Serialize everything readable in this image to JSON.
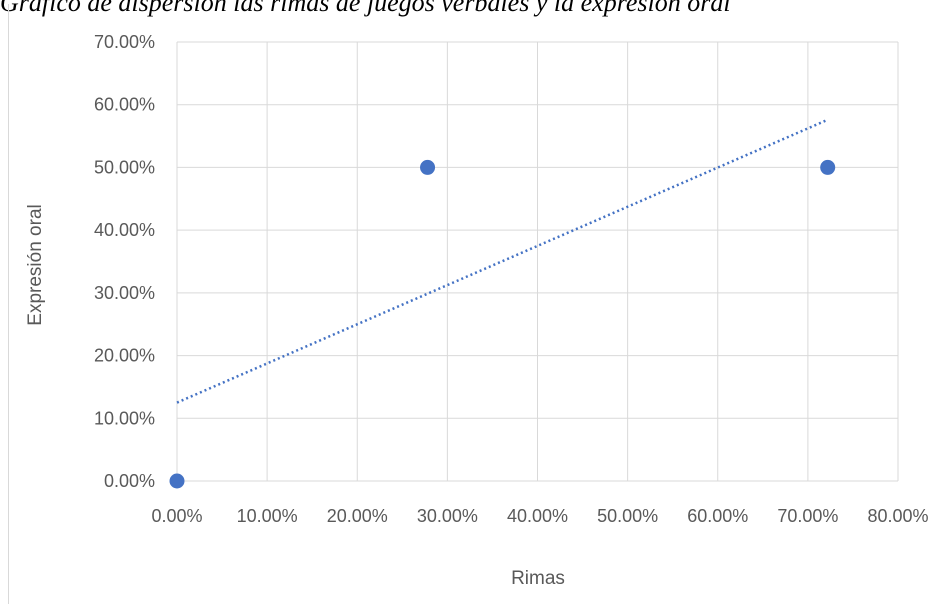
{
  "title": "Gráfico de dispersión las rimas de juegos verbales y la expresión oral",
  "colors": {
    "series": "#4472C4",
    "grid": "#d9d9d9",
    "text": "#595959"
  },
  "chart_data": {
    "type": "scatter",
    "xlabel": "Rimas",
    "ylabel": "Expresión oral",
    "xlim": [
      0,
      0.8
    ],
    "ylim": [
      0,
      0.7
    ],
    "x_ticks": [
      "0.00%",
      "10.00%",
      "20.00%",
      "30.00%",
      "40.00%",
      "50.00%",
      "60.00%",
      "70.00%",
      "80.00%"
    ],
    "y_ticks": [
      "0.00%",
      "10.00%",
      "20.00%",
      "30.00%",
      "40.00%",
      "50.00%",
      "60.00%",
      "70.00%"
    ],
    "grid": true,
    "legend": "none",
    "series": [
      {
        "points": [
          {
            "x": 0.0,
            "y": 0.0
          },
          {
            "x": 0.278,
            "y": 0.5
          },
          {
            "x": 0.722,
            "y": 0.5
          }
        ],
        "trendline": {
          "type": "linear",
          "x_start": 0.0,
          "x_end": 0.722,
          "y_start": 0.125,
          "y_end": 0.576,
          "style": "dotted"
        }
      }
    ]
  }
}
